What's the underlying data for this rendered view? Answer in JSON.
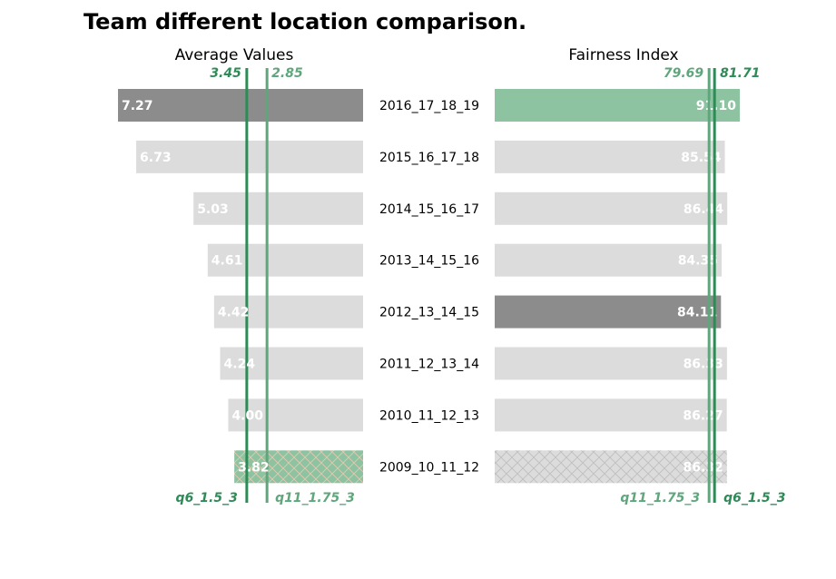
{
  "title": "Team different location comparison.",
  "colors": {
    "highlight_green": "#8ec3a2",
    "highlight_gray": "#8c8c8c",
    "default_bar": "#dcdcdc",
    "line_dark": "#2e8b57",
    "line_light": "#5fa67c",
    "hatch_light": "#e8c9b0",
    "hatch_gray": "#bdbdbd",
    "label_white": "#ffffff",
    "text": "#000000"
  },
  "chart_data": [
    {
      "type": "bar",
      "orientation": "horizontal",
      "direction": "right-to-left",
      "title": "Average Values",
      "categories": [
        "2016_17_18_19",
        "2015_16_17_18",
        "2014_15_16_17",
        "2013_14_15_16",
        "2012_13_14_15",
        "2011_12_13_14",
        "2010_11_12_13",
        "2009_10_11_12"
      ],
      "values": [
        7.27,
        6.73,
        5.03,
        4.61,
        4.42,
        4.24,
        4.0,
        3.82
      ],
      "value_labels": [
        "7.27",
        "6.73",
        "5.03",
        "4.61",
        "4.42",
        "4.24",
        "4.00",
        "3.82"
      ],
      "bar_styles": [
        "gray",
        "default",
        "default",
        "default",
        "default",
        "default",
        "default",
        "green-hatched"
      ],
      "xlim": [
        0,
        7.27
      ],
      "reference_lines": [
        {
          "name": "q6_1.5_3",
          "value": 3.45,
          "label": "3.45",
          "style": "dark"
        },
        {
          "name": "q11_1.75_3",
          "value": 2.85,
          "label": "2.85",
          "style": "light"
        }
      ]
    },
    {
      "type": "bar",
      "orientation": "horizontal",
      "direction": "left-to-right",
      "title": "Fairness Index",
      "categories": [
        "2016_17_18_19",
        "2015_16_17_18",
        "2014_15_16_17",
        "2013_14_15_16",
        "2012_13_14_15",
        "2011_12_13_14",
        "2010_11_12_13",
        "2009_10_11_12"
      ],
      "values": [
        91.1,
        85.54,
        86.44,
        84.35,
        84.11,
        86.33,
        86.27,
        86.32
      ],
      "value_labels": [
        "91.10",
        "85.54",
        "86.44",
        "84.35",
        "84.11",
        "86.33",
        "86.27",
        "86.32"
      ],
      "bar_styles": [
        "green",
        "default",
        "default",
        "default",
        "gray",
        "default",
        "default",
        "gray-hatched"
      ],
      "xlim": [
        0,
        91.1
      ],
      "reference_lines": [
        {
          "name": "q11_1.75_3",
          "value": 79.69,
          "label": "79.69",
          "style": "light"
        },
        {
          "name": "q6_1.5_3",
          "value": 81.71,
          "label": "81.71",
          "style": "dark"
        }
      ]
    }
  ]
}
